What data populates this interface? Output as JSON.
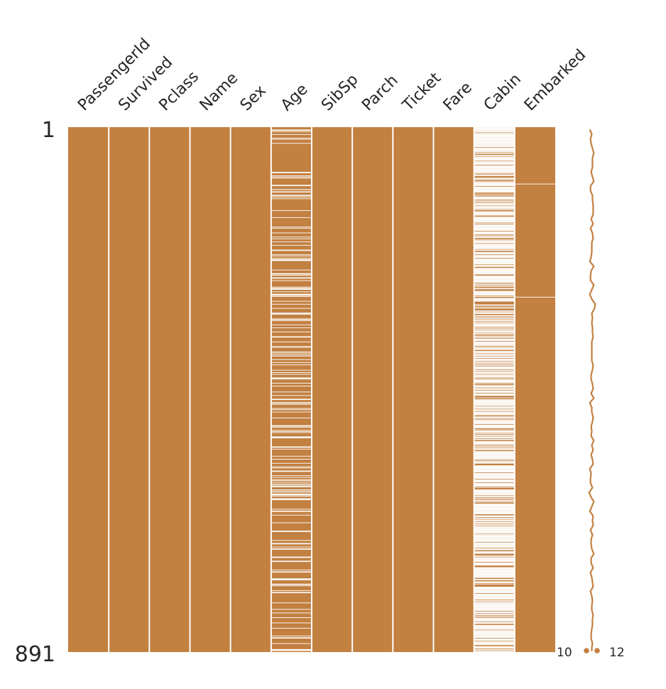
{
  "chart_data": {
    "type": "heatmap",
    "title": "",
    "columns": [
      "PassengerId",
      "Survived",
      "Pclass",
      "Name",
      "Sex",
      "Age",
      "SibSp",
      "Parch",
      "Ticket",
      "Fare",
      "Cabin",
      "Embarked"
    ],
    "row_range": [
      1,
      891
    ],
    "row_tick_labels": [
      "1",
      "891"
    ],
    "missing_counts": [
      0,
      0,
      0,
      0,
      0,
      177,
      0,
      0,
      0,
      0,
      687,
      2
    ],
    "sparkline": {
      "min_label": "10",
      "max_label": "12",
      "min_value": 10,
      "max_value": 12
    },
    "colors": {
      "present": "#c28041",
      "missing": "#ffffff",
      "background": "#ffffff"
    }
  }
}
